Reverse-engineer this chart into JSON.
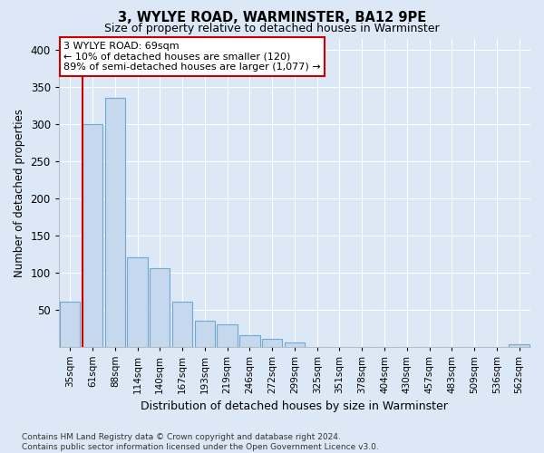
{
  "title": "3, WYLYE ROAD, WARMINSTER, BA12 9PE",
  "subtitle": "Size of property relative to detached houses in Warminster",
  "xlabel": "Distribution of detached houses by size in Warminster",
  "ylabel": "Number of detached properties",
  "categories": [
    "35sqm",
    "61sqm",
    "88sqm",
    "114sqm",
    "140sqm",
    "167sqm",
    "193sqm",
    "219sqm",
    "246sqm",
    "272sqm",
    "299sqm",
    "325sqm",
    "351sqm",
    "378sqm",
    "404sqm",
    "430sqm",
    "457sqm",
    "483sqm",
    "509sqm",
    "536sqm",
    "562sqm"
  ],
  "values": [
    60,
    300,
    335,
    120,
    105,
    60,
    35,
    30,
    15,
    10,
    5,
    0,
    0,
    0,
    0,
    0,
    0,
    0,
    0,
    0,
    3
  ],
  "bar_color": "#c5d8ed",
  "bar_edge_color": "#6fa8d0",
  "vline_x_index": 1,
  "vline_color": "#cc0000",
  "annotation_text": "3 WYLYE ROAD: 69sqm\n← 10% of detached houses are smaller (120)\n89% of semi-detached houses are larger (1,077) →",
  "annotation_box_facecolor": "#ffffff",
  "annotation_box_edgecolor": "#cc0000",
  "bg_color": "#dce8f5",
  "plot_bg_color": "#dce8f5",
  "footer": "Contains HM Land Registry data © Crown copyright and database right 2024.\nContains public sector information licensed under the Open Government Licence v3.0.",
  "ylim": [
    0,
    415
  ],
  "yticks": [
    50,
    100,
    150,
    200,
    250,
    300,
    350,
    400
  ],
  "grid_color": "#ffffff",
  "title_fontsize": 10.5,
  "subtitle_fontsize": 9
}
